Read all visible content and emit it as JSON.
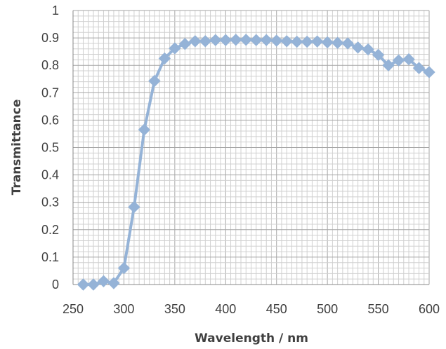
{
  "chart_data": {
    "type": "line",
    "xlabel": "Wavelength / nm",
    "ylabel": "Transmittance",
    "xlim": [
      250,
      600
    ],
    "ylim": [
      0,
      1
    ],
    "x_ticks": [
      "250",
      "300",
      "350",
      "400",
      "450",
      "500",
      "550",
      "600"
    ],
    "y_ticks": [
      "0",
      "0.1",
      "0.2",
      "0.3",
      "0.4",
      "0.5",
      "0.6",
      "0.7",
      "0.8",
      "0.9",
      "1"
    ],
    "grid": "major and minor gridlines",
    "legend": "none",
    "series_color": "#95b3d7",
    "marker": "diamond",
    "series": [
      {
        "x": [
          260,
          270,
          280,
          290,
          300,
          310,
          320,
          330,
          340,
          350,
          360,
          370,
          380,
          390,
          400,
          410,
          420,
          430,
          440,
          450,
          460,
          470,
          480,
          490,
          500,
          510,
          520,
          530,
          540,
          550,
          560,
          570,
          580,
          590,
          600
        ],
        "y": [
          0.0,
          0.0,
          0.012,
          0.005,
          0.06,
          0.283,
          0.565,
          0.743,
          0.825,
          0.862,
          0.878,
          0.888,
          0.888,
          0.892,
          0.892,
          0.893,
          0.893,
          0.892,
          0.892,
          0.89,
          0.888,
          0.886,
          0.886,
          0.887,
          0.884,
          0.882,
          0.88,
          0.865,
          0.858,
          0.838,
          0.8,
          0.818,
          0.822,
          0.79,
          0.775
        ]
      }
    ]
  }
}
